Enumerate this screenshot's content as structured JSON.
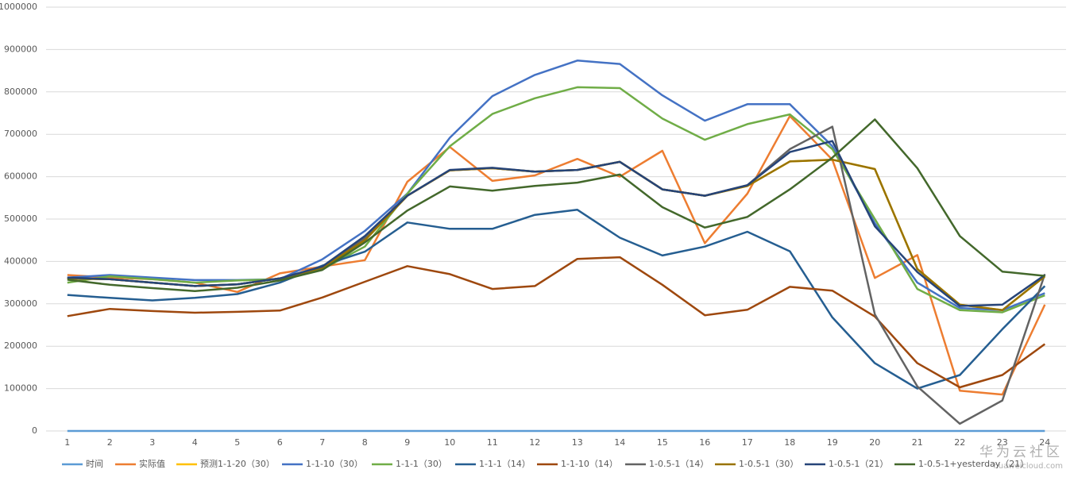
{
  "chart_data": {
    "type": "line",
    "categories": [
      "1",
      "2",
      "3",
      "4",
      "5",
      "6",
      "7",
      "8",
      "9",
      "10",
      "11",
      "12",
      "13",
      "14",
      "15",
      "16",
      "17",
      "18",
      "19",
      "20",
      "21",
      "22",
      "23",
      "24"
    ],
    "ylim": [
      0,
      1000000
    ],
    "yticks": [
      0,
      100000,
      200000,
      300000,
      400000,
      500000,
      600000,
      700000,
      800000,
      900000,
      1000000
    ],
    "grid": true,
    "legend": "bottom",
    "series": [
      {
        "name": "时间",
        "color": "#5b9bd5",
        "values": [
          0,
          0,
          0,
          0,
          0,
          0,
          0,
          0,
          0,
          0,
          0,
          0,
          0,
          0,
          0,
          0,
          0,
          0,
          0,
          0,
          0,
          0,
          0,
          0
        ]
      },
      {
        "name": "实际值",
        "color": "#ed7d31",
        "values": [
          368000,
          362000,
          358000,
          350000,
          328000,
          372000,
          388000,
          403000,
          588000,
          670000,
          590000,
          603000,
          642000,
          600000,
          661000,
          443000,
          560000,
          743000,
          640000,
          361000,
          415000,
          95000,
          86000,
          298000
        ]
      },
      {
        "name": "预测1-1-20（30）",
        "color": "#ffc000",
        "values": [
          360000,
          358000,
          350000,
          342000,
          346000,
          360000,
          385000,
          450000,
          555000,
          615000,
          620000,
          612000,
          616000,
          635000,
          570000,
          555000,
          578000,
          636000,
          640000,
          618000,
          382000,
          298000,
          285000,
          365000
        ]
      },
      {
        "name": "1-1-10（30）",
        "color": "#4472c4",
        "values": [
          362000,
          368000,
          362000,
          356000,
          356000,
          358000,
          405000,
          472000,
          560000,
          692000,
          790000,
          840000,
          874000,
          866000,
          792000,
          732000,
          771000,
          771000,
          672000,
          490000,
          350000,
          290000,
          285000,
          325000
        ]
      },
      {
        "name": "1-1-1（30）",
        "color": "#70ad47",
        "values": [
          350000,
          365000,
          358000,
          350000,
          355000,
          358000,
          382000,
          435000,
          560000,
          672000,
          748000,
          785000,
          811000,
          809000,
          737000,
          687000,
          724000,
          747000,
          665000,
          500000,
          335000,
          285000,
          280000,
          320000
        ]
      },
      {
        "name": "1-1-1（14）",
        "color": "#255e91",
        "values": [
          321000,
          314000,
          308000,
          314000,
          323000,
          350000,
          390000,
          423000,
          492000,
          477000,
          477000,
          510000,
          522000,
          456000,
          414000,
          435000,
          470000,
          424000,
          268000,
          160000,
          100000,
          132000,
          240000,
          342000
        ]
      },
      {
        "name": "1-1-10（14）",
        "color": "#9e480e",
        "values": [
          271000,
          288000,
          283000,
          279000,
          281000,
          284000,
          315000,
          352000,
          389000,
          370000,
          335000,
          342000,
          406000,
          410000,
          345000,
          273000,
          286000,
          340000,
          331000,
          270000,
          160000,
          103000,
          132000,
          205000
        ]
      },
      {
        "name": "1-0.5-1（14）",
        "color": "#636363",
        "values": [
          360000,
          358000,
          350000,
          342000,
          346000,
          360000,
          385000,
          455000,
          555000,
          615000,
          620000,
          612000,
          616000,
          635000,
          570000,
          555000,
          580000,
          665000,
          718000,
          275000,
          105000,
          17000,
          72000,
          370000
        ]
      },
      {
        "name": "1-0.5-1（30）",
        "color": "#997300",
        "values": [
          360000,
          358000,
          350000,
          342000,
          346000,
          360000,
          385000,
          450000,
          555000,
          615000,
          620000,
          612000,
          616000,
          635000,
          570000,
          555000,
          578000,
          636000,
          640000,
          618000,
          382000,
          298000,
          285000,
          365000
        ]
      },
      {
        "name": "1-0.5-1（21）",
        "color": "#264478",
        "values": [
          362000,
          358000,
          350000,
          342000,
          346000,
          360000,
          388000,
          460000,
          555000,
          616000,
          621000,
          612000,
          616000,
          635000,
          570000,
          555000,
          580000,
          658000,
          684000,
          483000,
          375000,
          295000,
          298000,
          368000
        ]
      },
      {
        "name": "1-0.5-1+yesterday（21）",
        "color": "#43682b",
        "values": [
          357000,
          345000,
          337000,
          330000,
          338000,
          355000,
          380000,
          445000,
          520000,
          577000,
          567000,
          578000,
          586000,
          605000,
          528000,
          480000,
          505000,
          570000,
          645000,
          735000,
          620000,
          460000,
          376000,
          366000
        ]
      }
    ],
    "watermark": "华为云社区",
    "watermark_url": "huaweicloud.com"
  }
}
